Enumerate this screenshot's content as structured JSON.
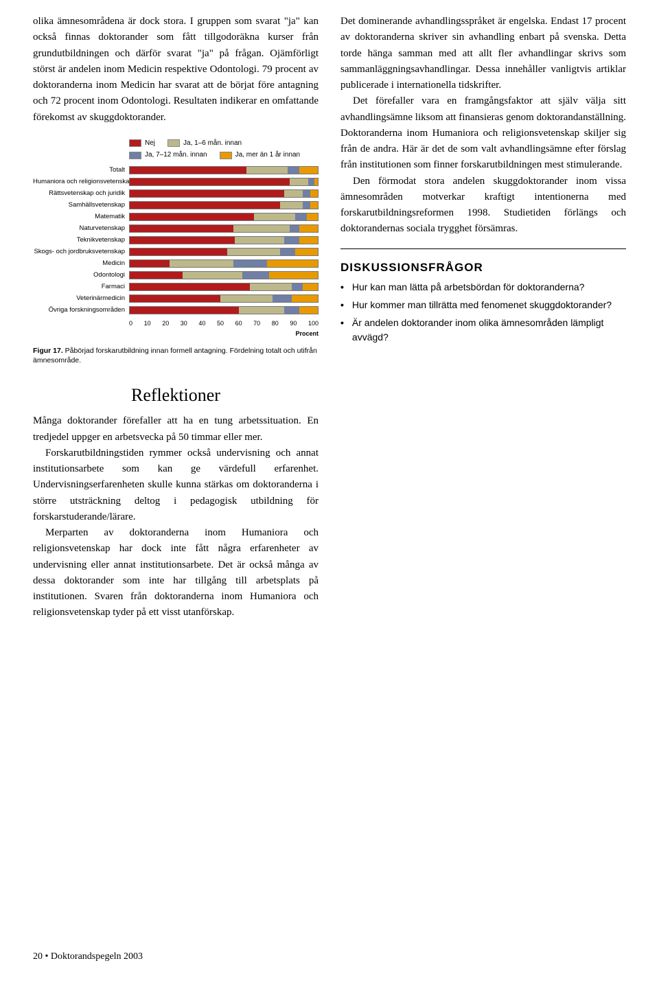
{
  "leftParagraph1": "olika ämnesområdena är dock stora. I gruppen som svarat \"ja\" kan också finnas doktorander som fått tillgodoräkna kurser från grundutbildningen och därför svarat \"ja\" på frågan. Ojämförligt störst är andelen inom Medicin respektive Odontologi. 79 procent av doktoranderna inom Medicin har svarat att de börjat före antagning och 72 procent inom Odontologi. Resultaten indikerar en omfattande förekomst av skuggdoktorander.",
  "legend": {
    "items": [
      {
        "label": "Nej",
        "color": "#b11b1b"
      },
      {
        "label": "Ja, 1–6 mån. innan",
        "color": "#bcb88a"
      },
      {
        "label": "Ja, 7–12 mån. innan",
        "color": "#6f7fa5"
      },
      {
        "label": "Ja, mer än 1 år innan",
        "color": "#e79a00"
      }
    ]
  },
  "chart": {
    "categories": [
      "Totalt",
      "Humaniora och religionsvetenskap",
      "Rättsvetenskap och juridik",
      "Samhällsvetenskap",
      "Matematik",
      "Naturvetenskap",
      "Teknikvetenskap",
      "Skogs- och jordbruksvetenskap",
      "Medicin",
      "Odontologi",
      "Farmaci",
      "Veterinärmedicin",
      "Övriga forskningsområden"
    ],
    "series_colors": [
      "#b11b1b",
      "#bcb88a",
      "#6f7fa5",
      "#e79a00"
    ],
    "rows": [
      [
        62,
        22,
        6,
        10
      ],
      [
        85,
        10,
        3,
        2
      ],
      [
        82,
        10,
        4,
        4
      ],
      [
        80,
        12,
        4,
        4
      ],
      [
        66,
        22,
        6,
        6
      ],
      [
        55,
        30,
        5,
        10
      ],
      [
        56,
        26,
        8,
        10
      ],
      [
        52,
        28,
        8,
        12
      ],
      [
        21,
        34,
        18,
        27
      ],
      [
        28,
        32,
        14,
        26
      ],
      [
        64,
        22,
        6,
        8
      ],
      [
        48,
        28,
        10,
        14
      ],
      [
        58,
        24,
        8,
        10
      ]
    ],
    "xmax": 100,
    "xtick_step": 10,
    "xlabel": "Procent",
    "border_color": "#777"
  },
  "caption_bold": "Figur 17.",
  "caption_rest": " Påbörjad forskarutbildning innan formell antagning. Fördelning totalt och utifrån ämnesområde.",
  "rightParagraph1": "Det dominerande avhandlingsspråket är engelska. Endast 17 procent av doktoranderna skriver sin avhandling enbart på svenska. Detta torde hänga samman med att allt fler avhandlingar skrivs som sammanläggningsavhandlingar. Dessa innehåller vanligtvis artiklar publicerade i internationella tidskrifter.",
  "rightParagraph2": "Det förefaller vara en framgångsfaktor att själv välja sitt avhandlingsämne liksom att finansieras genom doktorandanställning. Doktoranderna inom Humaniora och religionsvetenskap skiljer sig från de andra. Här är det de som valt avhandlingsämne efter förslag från institutionen som finner forskarutbildningen mest stimulerande.",
  "rightParagraph3": "Den förmodat stora andelen skuggdoktorander inom vissa ämnesområden motverkar kraftigt intentionerna med forskarutbildningsreformen 1998. Studietiden förlängs och doktorandernas sociala trygghet försämras.",
  "discussion_heading": "DISKUSSIONSFRÅGOR",
  "questions": [
    "Hur kan man lätta på arbetsbördan för doktoranderna?",
    "Hur kommer man tillrätta med fenomenet skuggdoktorander?",
    "Är andelen doktorander inom olika ämnesområden lämpligt avvägd?"
  ],
  "refl_heading": "Reflektioner",
  "refl_p1": "Många doktorander förefaller att ha en tung arbetssituation. En tredjedel uppger en arbetsvecka på 50 timmar eller mer.",
  "refl_p2": "Forskarutbildningstiden rymmer också undervisning och annat institutionsarbete som kan ge värdefull erfarenhet. Undervisningserfarenheten skulle kunna stärkas om doktoranderna i större utsträckning deltog i pedagogisk utbildning för forskarstuderande/lärare.",
  "refl_p3": "Merparten av doktoranderna inom Humaniora och religionsvetenskap har dock inte fått några erfarenheter av undervisning eller annat institutionsarbete. Det är också många av dessa doktorander som inte har tillgång till arbetsplats på institutionen. Svaren från doktoranderna inom Humaniora och religionsvetenskap tyder på ett visst utanförskap.",
  "footer": "20 • Doktorandspegeln 2003"
}
